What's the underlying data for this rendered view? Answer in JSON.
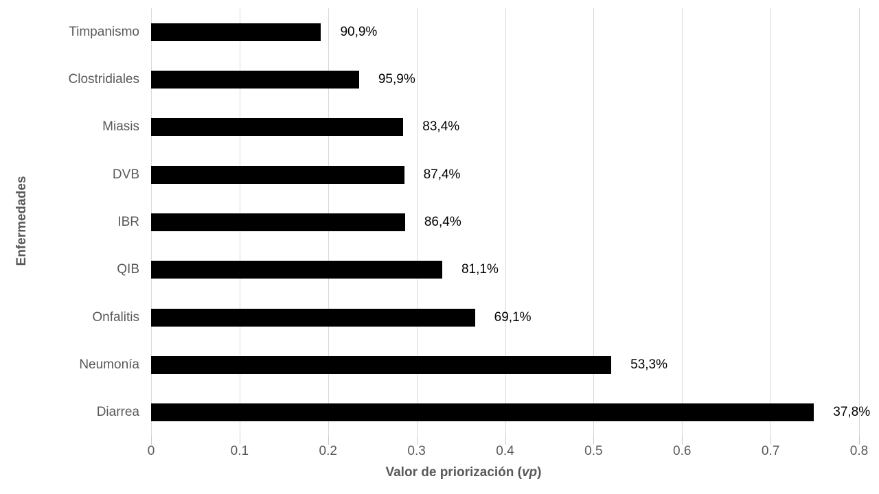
{
  "chart_data": {
    "type": "bar",
    "orientation": "horizontal",
    "title": "",
    "categories": [
      "Timpanismo",
      "Clostridiales",
      "Miasis",
      "DVB",
      "IBR",
      "QIB",
      "Onfalitis",
      "Neumonía",
      "Diarrea"
    ],
    "values": [
      0.192,
      0.235,
      0.285,
      0.286,
      0.287,
      0.329,
      0.366,
      0.52,
      0.749
    ],
    "value_labels": [
      "90,9%",
      "95,9%",
      "83,4%",
      "87,4%",
      "86,4%",
      "81,1%",
      "69,1%",
      "53,3%",
      "37,8%"
    ],
    "xlabel": "Valor de priorización (vp)",
    "xlabel_parts": {
      "prefix": "Valor de priorización (",
      "italic": "vp",
      "suffix": ")"
    },
    "ylabel": "Enfermedades",
    "xlim": [
      0,
      0.8
    ],
    "xtick_values": [
      0,
      0.1,
      0.2,
      0.3,
      0.4,
      0.5,
      0.6,
      0.7,
      0.8
    ],
    "xtick_labels": [
      "0",
      "0.1",
      "0.2",
      "0.3",
      "0.4",
      "0.5",
      "0.6",
      "0.7",
      "0.8"
    ],
    "grid": "vertical",
    "legend": "none",
    "colors": {
      "bar": "#000000",
      "gridline": "#d9d9d9",
      "axis_text": "#595959",
      "value_label_text": "#000000",
      "background": "#ffffff"
    }
  }
}
